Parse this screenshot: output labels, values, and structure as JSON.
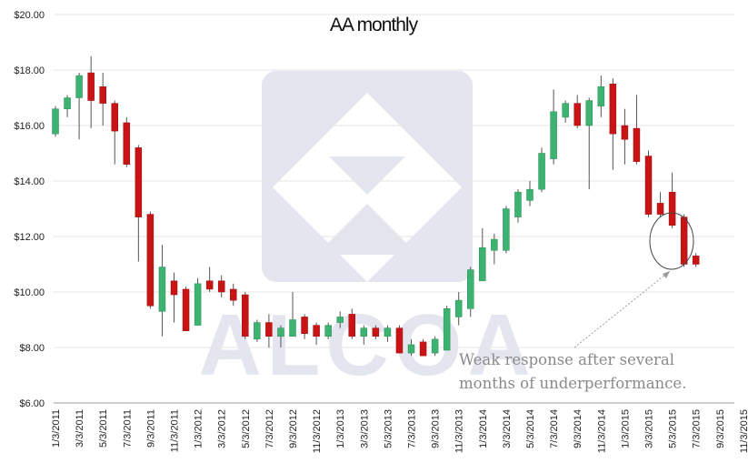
{
  "chart_data": {
    "type": "candlestick",
    "title": "AA monthly",
    "watermark_text": "ALCOA",
    "y_ticks": [
      "$6.00",
      "$8.00",
      "$10.00",
      "$12.00",
      "$14.00",
      "$16.00",
      "$18.00",
      "$20.00"
    ],
    "ylim": [
      6,
      20
    ],
    "x_ticks": [
      "1/3/2011",
      "3/3/2011",
      "5/3/2011",
      "7/3/2011",
      "9/3/2011",
      "11/3/2011",
      "1/3/2012",
      "3/3/2012",
      "5/3/2012",
      "7/3/2012",
      "9/3/2012",
      "11/3/2012",
      "1/3/2013",
      "3/3/2013",
      "5/3/2013",
      "7/3/2013",
      "9/3/2013",
      "11/3/2013",
      "1/3/2014",
      "3/3/2014",
      "5/3/2014",
      "7/3/2014",
      "9/3/2014",
      "11/3/2014",
      "1/3/2015",
      "3/3/2015",
      "5/3/2015",
      "7/3/2015",
      "9/3/2015",
      "11/3/2015"
    ],
    "annotation": {
      "line1": "Weak response after several",
      "line2": "months of underperformance."
    },
    "colors": {
      "up": "#3cb371",
      "down": "#c81414",
      "wick": "#555555",
      "grid": "#e6e6e6",
      "watermark": "#e3e6ef"
    },
    "candles": [
      [
        15.7,
        16.7,
        15.6,
        16.6
      ],
      [
        16.6,
        17.1,
        16.3,
        17.0
      ],
      [
        17.0,
        17.9,
        15.5,
        17.8
      ],
      [
        17.9,
        18.5,
        15.9,
        16.9
      ],
      [
        17.4,
        17.9,
        16.0,
        16.8
      ],
      [
        16.8,
        16.9,
        14.6,
        15.8
      ],
      [
        16.1,
        16.3,
        14.5,
        14.6
      ],
      [
        15.2,
        15.3,
        11.1,
        12.7
      ],
      [
        12.8,
        12.9,
        9.4,
        9.5
      ],
      [
        9.3,
        11.7,
        8.4,
        10.9
      ],
      [
        10.4,
        10.7,
        8.9,
        9.9
      ],
      [
        10.1,
        10.2,
        8.6,
        8.6
      ],
      [
        8.8,
        10.5,
        8.8,
        10.3
      ],
      [
        10.4,
        10.9,
        10.0,
        10.1
      ],
      [
        10.4,
        10.6,
        9.8,
        10.0
      ],
      [
        10.1,
        10.3,
        9.5,
        9.7
      ],
      [
        9.9,
        10.0,
        8.3,
        8.4
      ],
      [
        8.3,
        9.0,
        8.2,
        8.9
      ],
      [
        8.9,
        9.2,
        8.0,
        8.4
      ],
      [
        8.4,
        8.8,
        8.0,
        8.7
      ],
      [
        8.4,
        10.0,
        8.4,
        9.0
      ],
      [
        9.1,
        9.2,
        8.3,
        8.5
      ],
      [
        8.8,
        8.9,
        8.1,
        8.4
      ],
      [
        8.4,
        8.9,
        8.3,
        8.8
      ],
      [
        8.9,
        9.3,
        8.7,
        9.1
      ],
      [
        9.2,
        9.4,
        8.3,
        8.4
      ],
      [
        8.4,
        8.8,
        8.1,
        8.7
      ],
      [
        8.7,
        8.8,
        8.3,
        8.4
      ],
      [
        8.4,
        8.8,
        8.2,
        8.7
      ],
      [
        8.7,
        8.8,
        7.8,
        7.8
      ],
      [
        7.8,
        8.3,
        7.7,
        8.1
      ],
      [
        8.2,
        8.3,
        7.7,
        7.7
      ],
      [
        7.8,
        8.4,
        7.7,
        8.3
      ],
      [
        7.9,
        9.5,
        7.9,
        9.4
      ],
      [
        9.1,
        10.0,
        8.8,
        9.7
      ],
      [
        9.4,
        10.9,
        9.1,
        10.8
      ],
      [
        10.4,
        12.3,
        10.4,
        11.6
      ],
      [
        11.5,
        12.1,
        11.0,
        11.9
      ],
      [
        11.5,
        13.1,
        11.4,
        13.0
      ],
      [
        12.7,
        13.7,
        12.5,
        13.6
      ],
      [
        13.3,
        14.0,
        13.1,
        13.7
      ],
      [
        13.7,
        15.2,
        13.6,
        15.0
      ],
      [
        14.8,
        17.3,
        14.6,
        16.5
      ],
      [
        16.3,
        16.9,
        16.1,
        16.8
      ],
      [
        16.8,
        17.1,
        15.9,
        16.0
      ],
      [
        16.0,
        17.0,
        13.7,
        16.9
      ],
      [
        16.7,
        17.8,
        16.3,
        17.4
      ],
      [
        17.5,
        17.7,
        14.4,
        15.7
      ],
      [
        16.0,
        16.6,
        14.6,
        15.5
      ],
      [
        15.9,
        17.1,
        14.6,
        14.7
      ],
      [
        14.9,
        15.1,
        12.7,
        12.8
      ],
      [
        13.2,
        13.6,
        12.7,
        12.8
      ],
      [
        13.6,
        14.3,
        12.3,
        12.4
      ],
      [
        12.7,
        12.8,
        10.9,
        11.0
      ],
      [
        11.3,
        11.4,
        10.9,
        11.0
      ]
    ]
  }
}
